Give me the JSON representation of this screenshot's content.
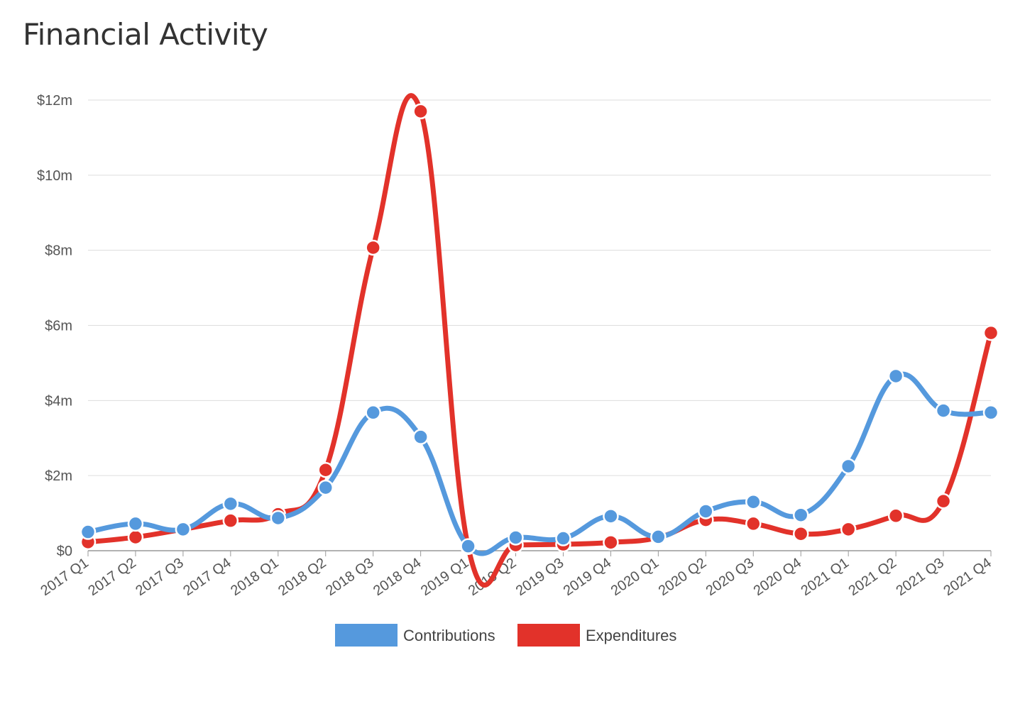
{
  "page": {
    "title": "Financial Activity"
  },
  "colors": {
    "contributions": "#5599dd",
    "expenditures": "#e2322a",
    "grid": "#dddddd",
    "axis": "#999999"
  },
  "chart_data": {
    "type": "line",
    "title": "Financial Activity",
    "categories": [
      "2017 Q1",
      "2017 Q2",
      "2017 Q3",
      "2017 Q4",
      "2018 Q1",
      "2018 Q2",
      "2018 Q3",
      "2018 Q4",
      "2019 Q1",
      "2019 Q2",
      "2019 Q3",
      "2019 Q4",
      "2020 Q1",
      "2020 Q2",
      "2020 Q3",
      "2020 Q4",
      "2021 Q1",
      "2021 Q2",
      "2021 Q3",
      "2021 Q4"
    ],
    "y_ticks": [
      0,
      2,
      4,
      6,
      8,
      10,
      12
    ],
    "y_tick_labels": [
      "$0",
      "$2m",
      "$4m",
      "$6m",
      "$8m",
      "$10m",
      "$12m"
    ],
    "ylim": [
      0,
      12
    ],
    "y_unit": "millions USD",
    "grid": true,
    "legend_position": "bottom-center",
    "series": [
      {
        "name": "Contributions",
        "color": "#5599dd",
        "values": [
          0.5,
          0.72,
          0.57,
          1.25,
          0.87,
          1.68,
          3.68,
          3.03,
          0.12,
          0.35,
          0.33,
          0.92,
          0.37,
          1.05,
          1.3,
          0.95,
          2.25,
          4.65,
          3.73,
          3.68
        ]
      },
      {
        "name": "Expenditures",
        "color": "#e2322a",
        "values": [
          0.23,
          0.36,
          0.57,
          0.8,
          0.97,
          2.15,
          8.07,
          11.7,
          0.1,
          0.15,
          0.17,
          0.22,
          0.35,
          0.82,
          0.72,
          0.45,
          0.57,
          0.93,
          1.32,
          5.8
        ]
      }
    ]
  }
}
